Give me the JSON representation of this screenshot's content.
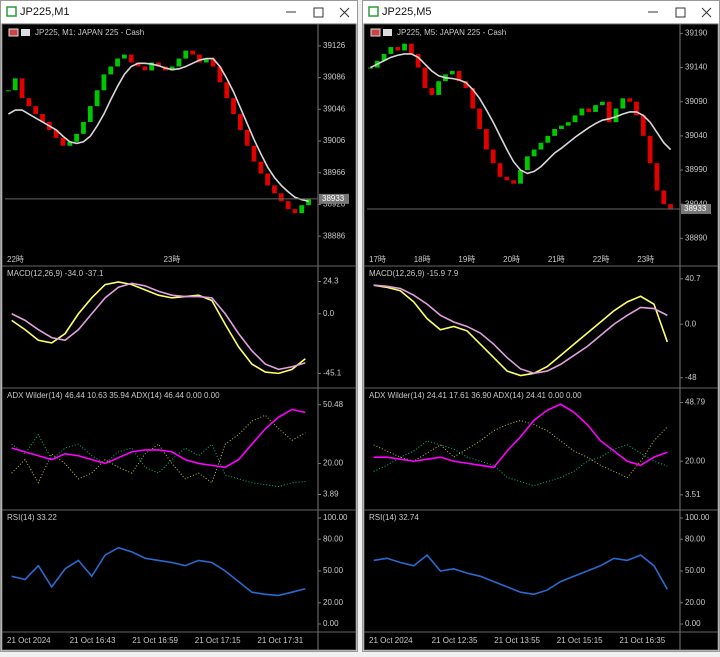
{
  "windows": [
    {
      "title": "JP225,M1",
      "header": "JP225, M1:  JAPAN 225 - Cash",
      "price": {
        "ylim": [
          38866,
          39146
        ],
        "yticks": [
          39126,
          39086,
          39046,
          39006,
          38966,
          38926,
          38886
        ],
        "up_color": "#00c800",
        "down_color": "#e00000",
        "current": 38933,
        "closes": [
          39070,
          39085,
          39060,
          39050,
          39040,
          39030,
          39020,
          39010,
          39000,
          39005,
          39015,
          39030,
          39050,
          39070,
          39090,
          39100,
          39110,
          39115,
          39105,
          39100,
          39095,
          39105,
          39100,
          39095,
          39100,
          39110,
          39120,
          39115,
          39105,
          39110,
          39100,
          39080,
          39060,
          39040,
          39020,
          39000,
          38980,
          38965,
          38950,
          38940,
          38930,
          38920,
          38915,
          38925,
          38933
        ],
        "ma": {
          "color": "#d8d8d8",
          "values": [
            39040,
            39045,
            39045,
            39040,
            39035,
            39030,
            39025,
            39020,
            39012,
            39005,
            39003,
            39005,
            39012,
            39025,
            39040,
            39058,
            39075,
            39090,
            39100,
            39104,
            39104,
            39103,
            39101,
            39098,
            39096,
            39097,
            39100,
            39104,
            39108,
            39110,
            39110,
            39100,
            39085,
            39068,
            39048,
            39028,
            39008,
            38990,
            38973,
            38960,
            38950,
            38942,
            38935,
            38932,
            38930
          ]
        }
      },
      "hours": [
        "22時",
        "23時"
      ],
      "panes": [
        {
          "header": "MACD(12,26,9) -34.0 -37.1",
          "ylim": [
            -50,
            30
          ],
          "yticks": [
            24.3,
            {
              "value": 0,
              "label": "0.0"
            },
            -45.1
          ],
          "series": [
            {
              "color": "#ffff66",
              "style": "solid",
              "values": [
                -5,
                -12,
                -20,
                -22,
                -15,
                0,
                12,
                22,
                24,
                22,
                18,
                14,
                12,
                13,
                14,
                10,
                -8,
                -25,
                -38,
                -44,
                -45,
                -42,
                -34
              ]
            },
            {
              "color": "#e0a0e0",
              "style": "solid",
              "values": [
                0,
                -5,
                -12,
                -18,
                -20,
                -12,
                0,
                12,
                20,
                23,
                21,
                17,
                14,
                13,
                13,
                12,
                0,
                -15,
                -28,
                -38,
                -42,
                -40,
                -37.1
              ]
            }
          ]
        },
        {
          "header": "ADX Wilder(14) 46.44 10.63 35.94 ADX(14) 46.44 0.00 0.00",
          "ylim": [
            0,
            55
          ],
          "yticks": [
            50.48,
            {
              "value": 20,
              "label": "20.00"
            },
            3.89
          ],
          "series": [
            {
              "color": "#00c080",
              "style": "dotted",
              "values": [
                30,
                25,
                35,
                22,
                28,
                30,
                24,
                20,
                26,
                28,
                18,
                15,
                22,
                28,
                24,
                30,
                14,
                12,
                10,
                9,
                8,
                10,
                10.63
              ]
            },
            {
              "color": "#c0c040",
              "style": "dotted",
              "values": [
                15,
                22,
                10,
                25,
                20,
                12,
                15,
                22,
                18,
                15,
                25,
                30,
                20,
                12,
                15,
                10,
                30,
                35,
                42,
                45,
                38,
                32,
                35.94
              ]
            },
            {
              "color": "#ff00ff",
              "style": "solid",
              "values": [
                28,
                26,
                24,
                22,
                25,
                24,
                22,
                20,
                23,
                26,
                27,
                27,
                26,
                22,
                20,
                19,
                18,
                22,
                30,
                38,
                44,
                48,
                46.44
              ]
            }
          ]
        },
        {
          "header": "RSI(14) 33.22",
          "ylim": [
            0,
            100
          ],
          "yticks": [
            {
              "value": 100,
              "label": "100.00"
            },
            {
              "value": 80,
              "label": "80.00"
            },
            {
              "value": 50,
              "label": "50.00"
            },
            {
              "value": 20,
              "label": "20.00"
            },
            {
              "value": 0,
              "label": "0.00"
            }
          ],
          "series": [
            {
              "color": "#2a6ad0",
              "style": "solid",
              "values": [
                45,
                42,
                55,
                35,
                52,
                60,
                45,
                65,
                72,
                68,
                62,
                60,
                58,
                55,
                60,
                58,
                50,
                40,
                30,
                28,
                27,
                30,
                33.22
              ]
            }
          ]
        }
      ],
      "dates": [
        "21 Oct 2024",
        "21 Oct 16:43",
        "21 Oct 16:59",
        "21 Oct 17:15",
        "21 Oct 17:31"
      ]
    },
    {
      "title": "JP225,M5",
      "header": "JP225, M5:  JAPAN 225 - Cash",
      "price": {
        "ylim": [
          38870,
          39195
        ],
        "yticks": [
          39190,
          39140,
          39090,
          39040,
          38990,
          38940,
          38890
        ],
        "up_color": "#00c800",
        "down_color": "#e00000",
        "current": 38933,
        "closes": [
          39140,
          39150,
          39160,
          39170,
          39165,
          39175,
          39160,
          39140,
          39110,
          39100,
          39120,
          39130,
          39135,
          39120,
          39110,
          39080,
          39050,
          39020,
          39000,
          38980,
          38975,
          38970,
          38990,
          39010,
          39020,
          39030,
          39040,
          39050,
          39055,
          39060,
          39070,
          39080,
          39075,
          39085,
          39090,
          39060,
          39080,
          39095,
          39090,
          39070,
          39040,
          39000,
          38960,
          38940,
          38933
        ],
        "ma": {
          "color": "#d8d8d8",
          "values": [
            39140,
            39145,
            39150,
            39155,
            39158,
            39160,
            39160,
            39155,
            39145,
            39135,
            39128,
            39125,
            39124,
            39122,
            39118,
            39108,
            39095,
            39078,
            39060,
            39040,
            39020,
            39002,
            38990,
            38985,
            38988,
            38995,
            39005,
            39015,
            39022,
            39030,
            39038,
            39045,
            39052,
            39058,
            39063,
            39065,
            39068,
            39072,
            39075,
            39075,
            39070,
            39060,
            39045,
            39030,
            39020
          ]
        }
      },
      "hours": [
        "17時",
        "18時",
        "19時",
        "20時",
        "21時",
        "22時",
        "23時"
      ],
      "panes": [
        {
          "header": "MACD(12,26,9) -15.9 7.9",
          "ylim": [
            -50,
            45
          ],
          "yticks": [
            40.7,
            {
              "value": 0,
              "label": "0.0"
            },
            -48.0
          ],
          "series": [
            {
              "color": "#ffff66",
              "style": "solid",
              "values": [
                35,
                33,
                30,
                20,
                5,
                -5,
                -2,
                -6,
                -18,
                -30,
                -42,
                -46,
                -44,
                -38,
                -28,
                -18,
                -8,
                2,
                12,
                20,
                25,
                18,
                -15.9
              ]
            },
            {
              "color": "#e0a0e0",
              "style": "solid",
              "values": [
                35,
                34,
                32,
                26,
                18,
                8,
                2,
                -2,
                -8,
                -18,
                -30,
                -40,
                -44,
                -42,
                -36,
                -28,
                -20,
                -10,
                0,
                8,
                15,
                14,
                7.9
              ]
            }
          ]
        },
        {
          "header": "ADX Wilder(14) 24.41 17.61 36.90 ADX(14) 24.41 0.00 0.00",
          "ylim": [
            0,
            52
          ],
          "yticks": [
            48.79,
            {
              "value": 20,
              "label": "20.00"
            },
            3.51
          ],
          "series": [
            {
              "color": "#00c080",
              "style": "dotted",
              "values": [
                15,
                18,
                22,
                25,
                30,
                28,
                26,
                22,
                20,
                18,
                12,
                10,
                8,
                10,
                12,
                15,
                20,
                22,
                26,
                28,
                24,
                20,
                17.61
              ]
            },
            {
              "color": "#c0c040",
              "style": "dotted",
              "values": [
                28,
                25,
                22,
                20,
                24,
                28,
                22,
                26,
                30,
                35,
                38,
                40,
                38,
                35,
                30,
                25,
                22,
                18,
                15,
                12,
                20,
                30,
                36.9
              ]
            },
            {
              "color": "#ff00ff",
              "style": "solid",
              "values": [
                22,
                22,
                21,
                20,
                21,
                22,
                20,
                19,
                18,
                17,
                25,
                32,
                40,
                45,
                48,
                44,
                38,
                30,
                25,
                20,
                18,
                22,
                24.41
              ]
            }
          ]
        },
        {
          "header": "RSI(14) 32.74",
          "ylim": [
            0,
            100
          ],
          "yticks": [
            {
              "value": 100,
              "label": "100.00"
            },
            {
              "value": 80,
              "label": "80.00"
            },
            {
              "value": 50,
              "label": "50.00"
            },
            {
              "value": 20,
              "label": "20.00"
            },
            {
              "value": 0,
              "label": "0.00"
            }
          ],
          "series": [
            {
              "color": "#2a6ad0",
              "style": "solid",
              "values": [
                60,
                62,
                58,
                55,
                65,
                50,
                52,
                48,
                45,
                40,
                35,
                30,
                28,
                32,
                40,
                45,
                50,
                55,
                62,
                60,
                65,
                55,
                32.74
              ]
            }
          ]
        }
      ],
      "dates": [
        "21 Oct 2024",
        "21 Oct 12:35",
        "21 Oct 13:55",
        "21 Oct 15:15",
        "21 Oct 16:35"
      ]
    }
  ]
}
